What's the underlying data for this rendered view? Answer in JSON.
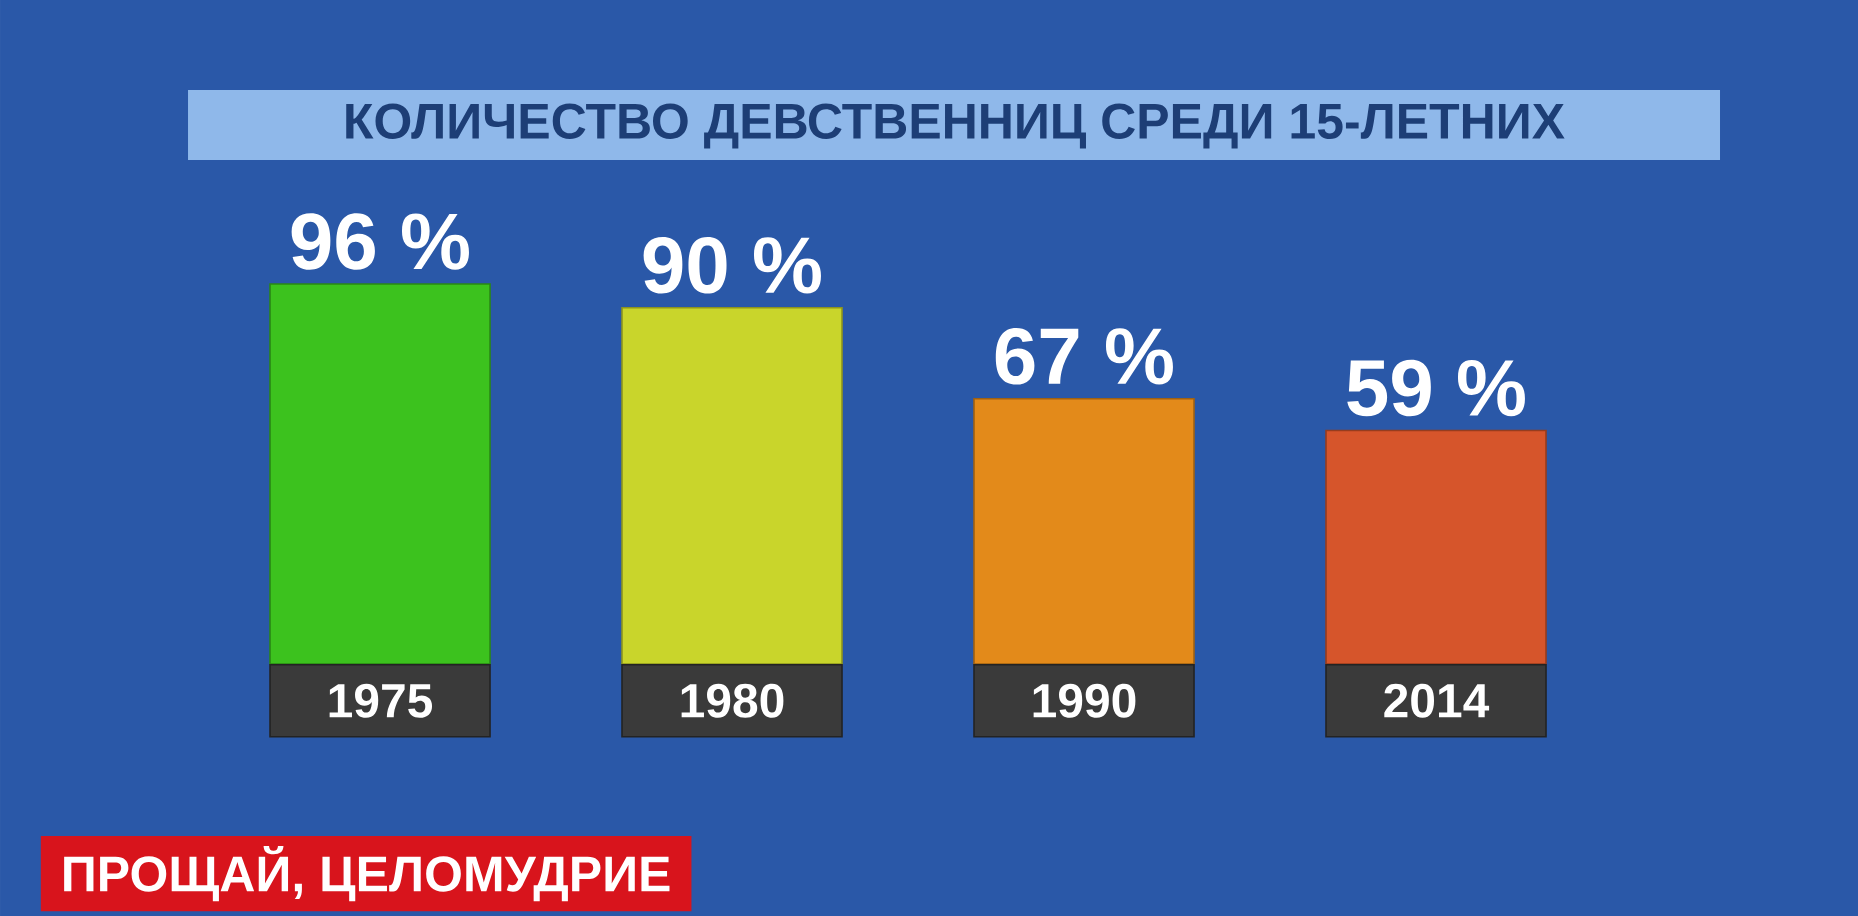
{
  "chart_data": {
    "type": "bar",
    "title": "КОЛИЧЕСТВО ДЕВСТВЕННИЦ СРЕДИ 15-ЛЕТНИХ",
    "categories": [
      "1975",
      "1980",
      "1990",
      "2014"
    ],
    "values": [
      96,
      90,
      67,
      59
    ],
    "value_labels": [
      "96 %",
      "90 %",
      "67 %",
      "59 %"
    ],
    "colors": [
      "#3cc21e",
      "#c9d52b",
      "#e38a1a",
      "#d6552b"
    ],
    "annotations": [
      "ПРОЩАЙ, ЦЕЛОМУДРИЕ"
    ]
  }
}
